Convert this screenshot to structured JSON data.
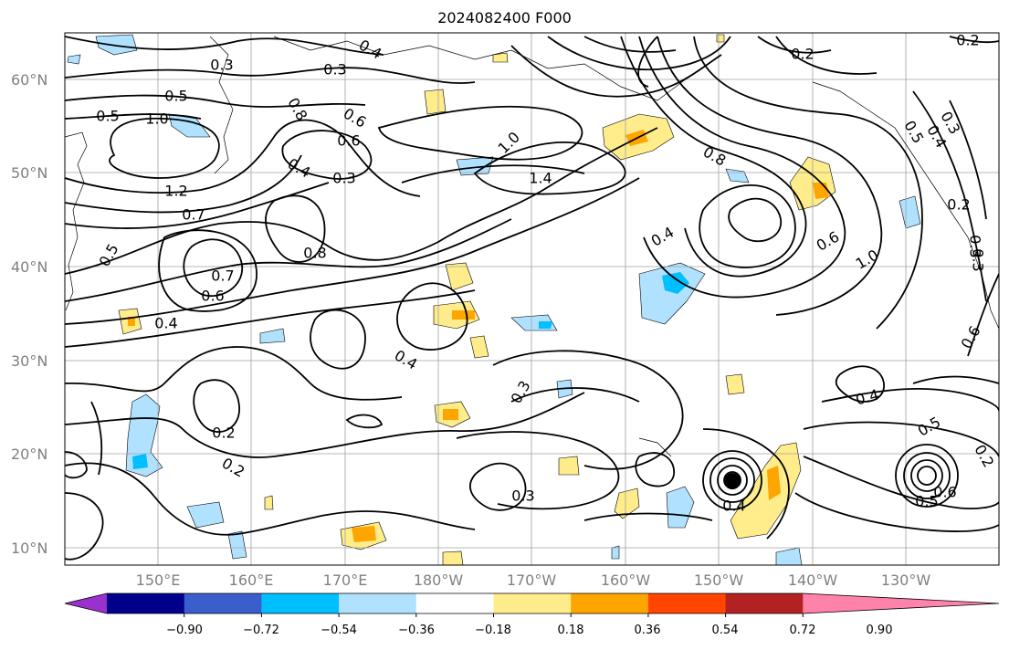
{
  "title": "2024082400 F000",
  "lat_labels": [
    "60°N",
    "50°N",
    "40°N",
    "30°N",
    "20°N",
    "10°N"
  ],
  "lon_labels": [
    "150°E",
    "160°E",
    "170°E",
    "180°W",
    "170°W",
    "160°W",
    "150°W",
    "140°W",
    "130°W"
  ],
  "colorbar": {
    "ticks": [
      "−0.90",
      "−0.72",
      "−0.54",
      "−0.36",
      "−0.18",
      "0.18",
      "0.36",
      "0.54",
      "0.72",
      "0.90"
    ],
    "colors": [
      "#9932cc",
      "#00008b",
      "#3a5fcd",
      "#00bfff",
      "#b0e2ff",
      "#ffffff",
      "#ffec8b",
      "#ffa500",
      "#ff4500",
      "#b22222",
      "#ff82ab"
    ]
  },
  "contour_labels": [
    "0.3",
    "0.4",
    "0.3",
    "0.5",
    "1.0",
    "0.8",
    "0.6",
    "0.5",
    "0.6",
    "0.4",
    "0.3",
    "1.2",
    "0.7",
    "0.8",
    "0.5",
    "0.7",
    "0.6",
    "0.4",
    "0.4",
    "1.0",
    "1.4",
    "0.8",
    "0.2",
    "0.2",
    "0.3",
    "0.4",
    "0.5",
    "0.6",
    "1.0",
    "0.4",
    "0.3",
    "0.3",
    "0.2",
    "0.2",
    "0.3",
    "0.4",
    "0.5",
    "0.6",
    "0.3",
    "0.2",
    "0.4",
    "0.5",
    "0.6",
    "0.2"
  ]
}
